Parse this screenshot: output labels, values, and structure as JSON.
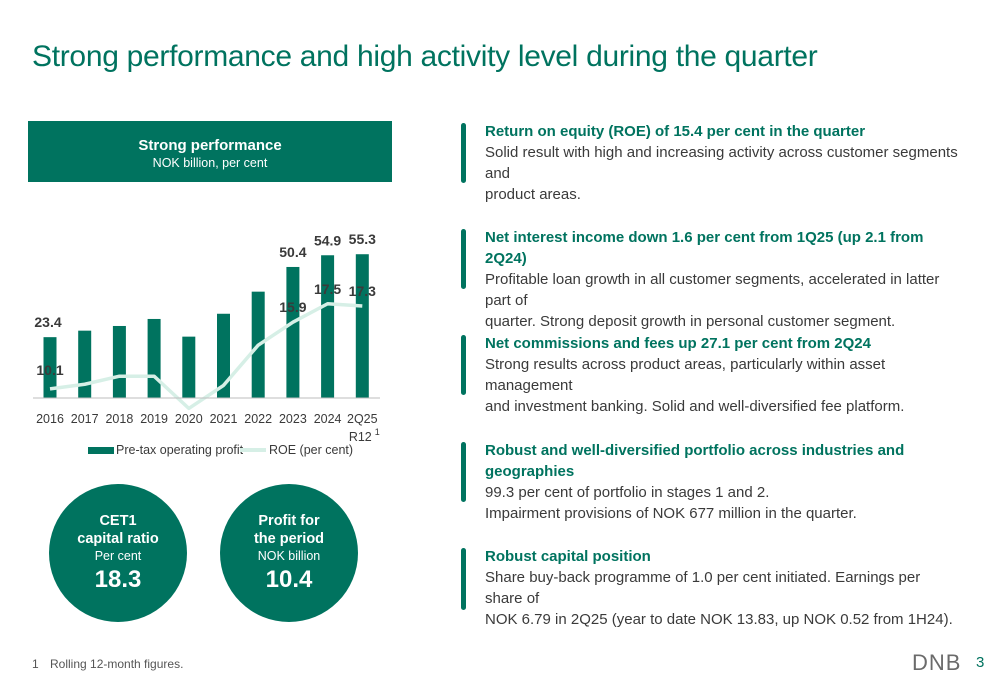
{
  "slide": {
    "title": "Strong performance and high activity level during the quarter",
    "page_number": "3",
    "logo": "DNB",
    "footnote": {
      "number": "1",
      "text": "Rolling 12-month figures."
    }
  },
  "chart_panel": {
    "title": "Strong performance",
    "subtitle": "NOK billion, per cent"
  },
  "chart_data": {
    "type": "bar",
    "title": "Strong performance",
    "subtitle": "NOK billion, per cent",
    "categories": [
      "2016",
      "2017",
      "2018",
      "2019",
      "2020",
      "2021",
      "2022",
      "2023",
      "2024",
      "2Q25"
    ],
    "category_sublabels": [
      "",
      "",
      "",
      "",
      "",
      "",
      "",
      "",
      "",
      "R12"
    ],
    "category_superscripts": [
      "",
      "",
      "",
      "",
      "",
      "",
      "",
      "",
      "",
      "1"
    ],
    "series": [
      {
        "name": "Pre-tax operating profit",
        "type": "bar",
        "values": [
          23.4,
          25.9,
          27.7,
          30.4,
          23.6,
          32.4,
          40.9,
          50.4,
          54.9,
          55.3
        ],
        "labels": [
          "23.4",
          "",
          "",
          "",
          "",
          "",
          "",
          "50.4",
          "54.9",
          "55.3"
        ]
      },
      {
        "name": "ROE (per cent)",
        "type": "line",
        "values": [
          10.1,
          10.5,
          11.2,
          11.2,
          8.4,
          10.4,
          13.9,
          15.9,
          17.5,
          17.3
        ],
        "labels": [
          "10.1",
          "",
          "",
          "",
          "",
          "",
          "",
          "15.9",
          "17.5",
          "17.3"
        ]
      }
    ],
    "legend_position": "bottom",
    "grid": false,
    "colors": {
      "bar": "#00735f",
      "line": "#d6efe6",
      "label": "#3a3a3a"
    }
  },
  "kpis": [
    {
      "title_line1": "CET1",
      "title_line2": "capital ratio",
      "unit": "Per cent",
      "value": "18.3"
    },
    {
      "title_line1": "Profit for",
      "title_line2": "the period",
      "unit": "NOK billion",
      "value": "10.4"
    }
  ],
  "bullets": [
    {
      "title": "Return on equity (ROE) of 15.4 per cent in the quarter",
      "text": "Solid result with high and increasing activity across customer segments and\nproduct areas."
    },
    {
      "title": "Net interest income down 1.6 per cent from 1Q25 (up 2.1 from 2Q24)",
      "text": "Profitable loan growth in all customer segments, accelerated in latter part of\nquarter. Strong deposit growth in personal customer segment."
    },
    {
      "title": "Net commissions and fees up 27.1 per cent from 2Q24",
      "text": "Strong results across product areas, particularly within asset management\nand investment banking. Solid and well-diversified fee platform."
    },
    {
      "title": "Robust and well-diversified portfolio across industries and geographies",
      "text": "99.3 per cent of portfolio in stages 1 and 2.\nImpairment provisions of NOK 677 million in the quarter."
    },
    {
      "title": "Robust capital position",
      "text": "Share buy-back programme of 1.0 per cent initiated. Earnings per share of\nNOK 6.79 in 2Q25 (year to date NOK 13.83, up NOK 0.52 from 1H24)."
    }
  ]
}
